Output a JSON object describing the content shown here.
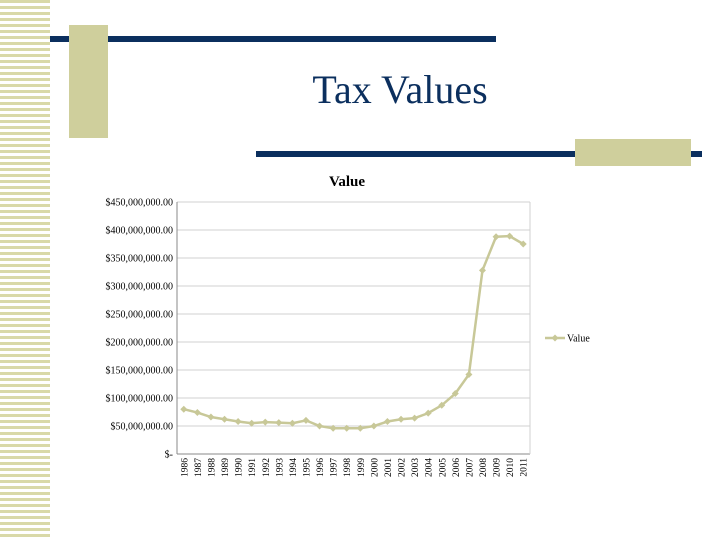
{
  "slide": {
    "title": "Tax Values"
  },
  "chart_data": {
    "type": "line",
    "title": "Value",
    "xlabel": "",
    "ylabel": "",
    "categories": [
      "1986",
      "1987",
      "1988",
      "1989",
      "1990",
      "1991",
      "1992",
      "1993",
      "1994",
      "1995",
      "1996",
      "1997",
      "1998",
      "1999",
      "2000",
      "2001",
      "2002",
      "2003",
      "2004",
      "2005",
      "2006",
      "2007",
      "2008",
      "2009",
      "2010",
      "2011"
    ],
    "series": [
      {
        "name": "Value",
        "color": "#c8c898",
        "values": [
          80000000,
          74000000,
          66000000,
          62000000,
          58000000,
          55000000,
          57000000,
          56000000,
          55000000,
          60000000,
          50000000,
          46000000,
          46000000,
          46000000,
          50000000,
          58000000,
          62000000,
          64000000,
          73000000,
          87000000,
          108000000,
          142000000,
          328000000,
          388000000,
          389000000,
          375000000
        ]
      }
    ],
    "ylim": [
      0,
      450000000
    ],
    "yticks": [
      0,
      50000000,
      100000000,
      150000000,
      200000000,
      250000000,
      300000000,
      350000000,
      400000000,
      450000000
    ],
    "ytick_labels": [
      "$-",
      "$50,000,000.00",
      "$100,000,000.00",
      "$150,000,000.00",
      "$200,000,000.00",
      "$250,000,000.00",
      "$300,000,000.00",
      "$350,000,000.00",
      "$400,000,000.00",
      "$450,000,000.00"
    ],
    "grid": true,
    "legend_position": "right"
  }
}
